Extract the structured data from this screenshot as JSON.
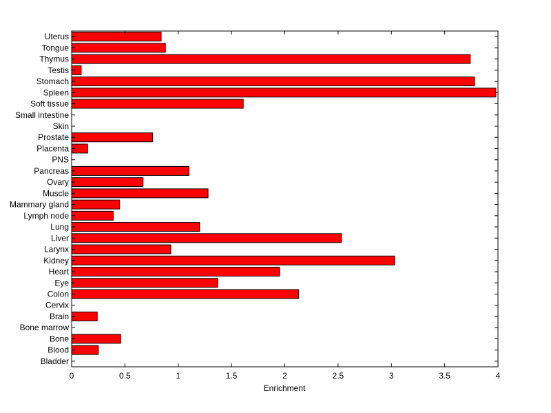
{
  "chart_data": {
    "type": "bar",
    "orientation": "horizontal",
    "title": "",
    "xlabel": "Enrichment",
    "ylabel": "",
    "xlim": [
      0,
      4
    ],
    "xticks": [
      0,
      0.5,
      1,
      1.5,
      2,
      2.5,
      3,
      3.5,
      4
    ],
    "xtick_labels": [
      "0",
      "0.5",
      "1",
      "1.5",
      "2",
      "2.5",
      "3",
      "3.5",
      "4"
    ],
    "grid": false,
    "legend": "none",
    "bar_color": "#ff0000",
    "categories": [
      "Uterus",
      "Tongue",
      "Thymus",
      "Testis",
      "Stomach",
      "Spleen",
      "Soft tissue",
      "Small intestine",
      "Skin",
      "Prostate",
      "Placenta",
      "PNS",
      "Pancreas",
      "Ovary",
      "Muscle",
      "Mammary gland",
      "Lymph node",
      "Lung",
      "Liver",
      "Larynx",
      "Kidney",
      "Heart",
      "Eye",
      "Colon",
      "Cervix",
      "Brain",
      "Bone marrow",
      "Bone",
      "Blood",
      "Bladder"
    ],
    "values": [
      0.84,
      0.88,
      3.74,
      0.09,
      3.78,
      3.98,
      1.61,
      0,
      0,
      0.76,
      0.15,
      0,
      1.1,
      0.67,
      1.28,
      0.45,
      0.39,
      1.2,
      2.53,
      0.93,
      3.03,
      1.95,
      1.37,
      2.13,
      0,
      0.24,
      0,
      0.46,
      0.25,
      0
    ]
  }
}
